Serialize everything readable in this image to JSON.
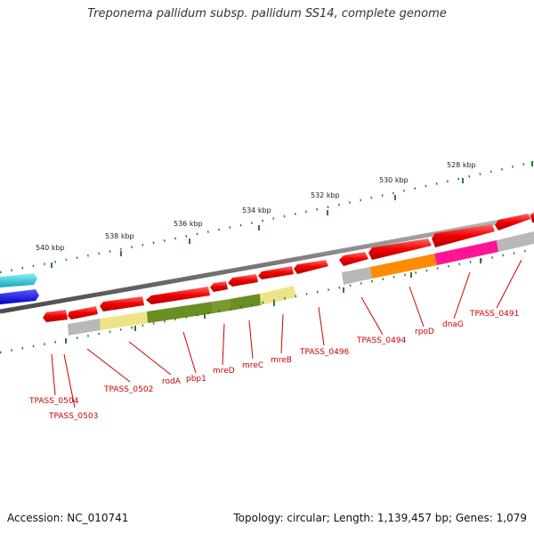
{
  "title": "Treponema pallidum subsp. pallidum SS14, complete genome",
  "footer": {
    "accession": "Accession: NC_010741",
    "summary": "Topology: circular; Length: 1,139,457 bp; Genes: 1,079"
  },
  "scale_labels": [
    "540 kbp",
    "538 kbp",
    "536 kbp",
    "534 kbp",
    "532 kbp",
    "530 kbp",
    "528 kbp"
  ],
  "gene_labels": [
    "TPASS_0504",
    "TPASS_0503",
    "TPASS_0502",
    "rodA",
    "pbp1",
    "mreD",
    "mreC",
    "mreB",
    "TPASS_0496",
    "TPASS_0494",
    "rpoD",
    "dnaG",
    "TPASS_0491"
  ],
  "colors": {
    "cds": "#e00000",
    "backbone": "#808080",
    "scale_dots": "#2e7d2e",
    "label": "#cc0000",
    "cog_grey": "#b8b8b8",
    "cog_yellow": "#ede48a",
    "cog_olive": "#6b8e23",
    "cog_orange": "#ff8c00",
    "cog_magenta": "#ff1493",
    "cyan": "#20c8d8",
    "blue": "#0000ee"
  }
}
